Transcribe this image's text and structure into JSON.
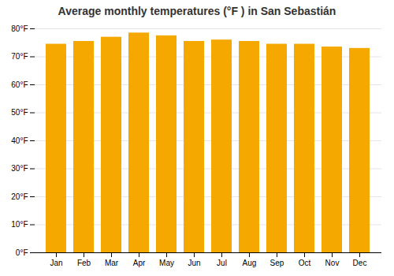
{
  "chart_data": {
    "type": "bar",
    "title": "Average monthly temperatures (°F ) in San Sebastián",
    "categories": [
      "Jan",
      "Feb",
      "Mar",
      "Apr",
      "May",
      "Jun",
      "Jul",
      "Aug",
      "Sep",
      "Oct",
      "Nov",
      "Dec"
    ],
    "values": [
      74.5,
      75.5,
      77.0,
      78.5,
      77.5,
      75.5,
      76.0,
      75.5,
      74.5,
      74.5,
      73.5,
      73.0
    ],
    "color": "#F5A800",
    "ylim": [
      0,
      80
    ],
    "yticks": [
      {
        "value": 0,
        "label": "0°F"
      },
      {
        "value": 10,
        "label": "10°F"
      },
      {
        "value": 20,
        "label": "20°F"
      },
      {
        "value": 30,
        "label": "30°F"
      },
      {
        "value": 40,
        "label": "40°F"
      },
      {
        "value": 50,
        "label": "50°F"
      },
      {
        "value": 60,
        "label": "60°F"
      },
      {
        "value": 70,
        "label": "70°F"
      },
      {
        "value": 80,
        "label": "80°F"
      }
    ],
    "grid": true
  }
}
